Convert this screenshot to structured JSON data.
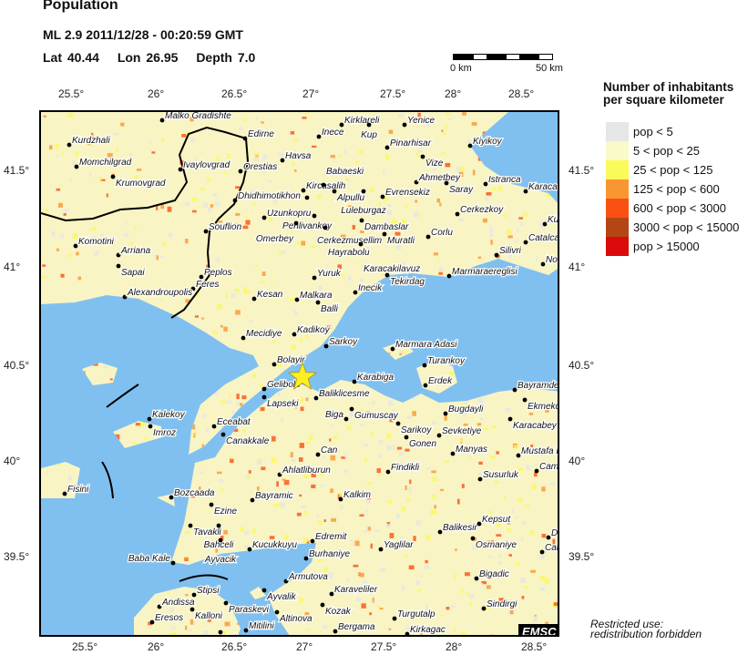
{
  "header": {
    "title": "Population",
    "line1": "ML 2.9  2011/12/28 - 00:20:59 GMT",
    "lat": "Lat 40.44",
    "lon": "Lon  26.95",
    "depth": "Depth  7.0"
  },
  "scale_bar": {
    "left": "0 km",
    "right": "50 km"
  },
  "axes": {
    "lon_ticks": [
      "25.5°",
      "26°",
      "26.5°",
      "27°",
      "27.5°",
      "28°",
      "28.5°"
    ],
    "lat_ticks": [
      "41.5°",
      "41°",
      "40.5°",
      "40°",
      "39.5°"
    ]
  },
  "legend": {
    "title_line1": "Number of inhabitants",
    "title_line2": "per square kilometer",
    "items": [
      {
        "label": "pop < 5",
        "color": "#e6e6e6"
      },
      {
        "label": "5 < pop < 25",
        "color": "#fafac8"
      },
      {
        "label": "25 < pop < 125",
        "color": "#fafa5a"
      },
      {
        "label": "125 < pop < 600",
        "color": "#fa9632"
      },
      {
        "label": "600 < pop < 3000",
        "color": "#fa5014"
      },
      {
        "label": "3000 < pop < 15000",
        "color": "#b44614"
      },
      {
        "label": "pop > 15000",
        "color": "#dc0a0a"
      }
    ]
  },
  "colors": {
    "sea": "#80c0f0",
    "land": "#f8f4c4",
    "epicenter": "#ffee22",
    "border": "#000000"
  },
  "epicenter": {
    "icon": "star-icon",
    "lat": 40.44,
    "lon": 26.95
  },
  "cities": [
    "Malko Gradishte",
    "Kurdzhali",
    "Momchilgrad",
    "Krumovgrad",
    "Ivaylovgrad",
    "Edirne",
    "Orestias",
    "Dhidhimotikhon",
    "Havsa",
    "Uzunkopru",
    "Souflion",
    "Komotini",
    "Arriana",
    "Sapai",
    "Peplos",
    "Feres",
    "Alexandroupolis",
    "Kesan",
    "Malkara",
    "Inece",
    "Kirklareli",
    "Kup",
    "Yenice",
    "Pinarhisar",
    "Vize",
    "Kiyikoy",
    "Kircasalih",
    "Babaeski",
    "Alpullu",
    "Luleburgaz",
    "Pehlivankoy",
    "Evrensekiz",
    "Ahmetbey",
    "Saray",
    "Istranca",
    "Karacakoy",
    "Cerkezmusellim",
    "Omerbey",
    "Hayrabolu",
    "Dambaslar",
    "Cerkezkoy",
    "Muratli",
    "Corlu",
    "Karacakilavuz",
    "Kumburgaz",
    "Catalca",
    "Silivri",
    "Nof",
    "Tekirdag",
    "Marmaraereglisi",
    "Yuruk",
    "Inecik",
    "Balli",
    "Mecidiye",
    "Kadikoy",
    "Sarkoy",
    "Marmara Adasi",
    "Bolayir",
    "Gelibolu",
    "Lapseki",
    "Karabiga",
    "Turankoy",
    "Erdek",
    "Bayramdere",
    "Ekmekci",
    "Baliklicesme",
    "Gumuscay",
    "Biga",
    "Sarikoy",
    "Bugdayli",
    "Sevketiye",
    "Gonen",
    "Manyas",
    "Karacabey",
    "Mustafa K",
    "Can",
    "Findikli",
    "Susurluk",
    "Cam",
    "Ahlatliburun",
    "Kalekoy",
    "Imroz",
    "Eceabat",
    "Canakkale",
    "Fisini",
    "Bozcaada",
    "Ezine",
    "Bayramic",
    "Tavakli",
    "Bahceli",
    "Ayvacik",
    "Kucukkuyu",
    "Edremit",
    "Yaglilar",
    "Kalkim",
    "Balikesir",
    "Kepsut",
    "Osmaniye",
    "D",
    "Cat",
    "Baba Kale",
    "Burhaniye",
    "Armutova",
    "Bigadic",
    "Stipsi",
    "Ayvalik",
    "Andissa",
    "Kalloni",
    "Paraskevi",
    "Altinova",
    "Karaveliler",
    "Kozak",
    "Sindirgi",
    "Eresos",
    "Turgutalp",
    "Bergama",
    "Kirkagac",
    "Mitilini",
    "Ayiasos"
  ],
  "badge": "EMSC",
  "footer": {
    "line1": "Restricted use:",
    "line2": "redistribution forbidden"
  }
}
